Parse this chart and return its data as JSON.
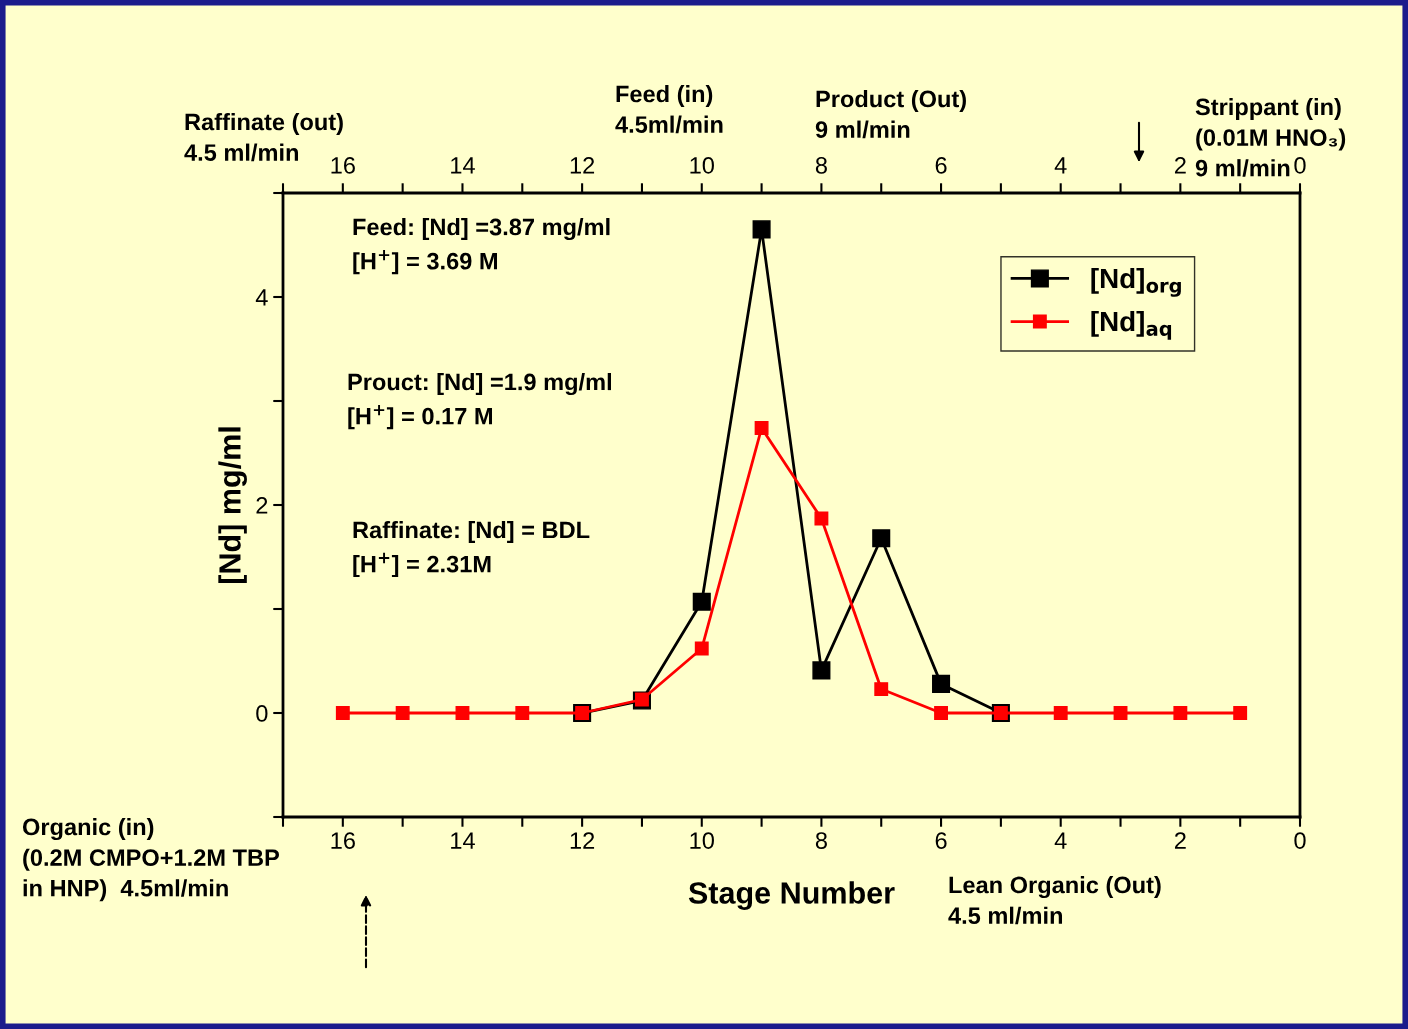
{
  "chart_data": {
    "type": "line",
    "xlabel": "Stage Number",
    "ylabel": "[Nd] mg/ml",
    "xlim": [
      17,
      0
    ],
    "ylim": [
      -1,
      5
    ],
    "xticks": [
      {
        "value": 17,
        "label": null
      },
      16,
      {
        "value": 15,
        "label": null
      },
      14,
      {
        "value": 13,
        "label": null
      },
      12,
      {
        "value": 11,
        "label": null
      },
      10,
      {
        "value": 9,
        "label": null
      },
      8,
      {
        "value": 7,
        "label": null
      },
      6,
      {
        "value": 5,
        "label": null
      },
      4,
      {
        "value": 3,
        "label": null
      },
      2,
      {
        "value": 1,
        "label": null
      },
      0
    ],
    "x2lim": [
      17,
      0
    ],
    "x2ticks": [
      {
        "value": 17,
        "label": null
      },
      16,
      {
        "value": 15,
        "label": null
      },
      14,
      {
        "value": 13,
        "label": null
      },
      12,
      {
        "value": 11,
        "label": null
      },
      10,
      {
        "value": 9,
        "label": null
      },
      8,
      {
        "value": 7,
        "label": null
      },
      6,
      {
        "value": 5,
        "label": null
      },
      4,
      {
        "value": 3,
        "label": null
      },
      2,
      {
        "value": 1,
        "label": null
      },
      0
    ],
    "yticks": [
      {
        "value": -1,
        "label": null
      },
      0,
      {
        "value": 1,
        "label": null
      },
      2,
      {
        "value": 3,
        "label": null
      },
      4,
      {
        "value": 5,
        "label": null
      }
    ],
    "marker": "square",
    "line_style": "solid",
    "grid": false,
    "legend": "top right",
    "series": [
      {
        "name": "[Nd]$_{org}$",
        "color": "#000000",
        "x": [
          12,
          11,
          10,
          9,
          8,
          7,
          6,
          5
        ],
        "values": [
          0,
          0.12,
          1.07,
          4.65,
          0.41,
          1.68,
          0.28,
          0
        ]
      },
      {
        "name": "[Nd]$_{aq}$",
        "color": "#ff0000",
        "x": [
          16,
          15,
          14,
          13,
          12,
          11,
          10,
          9,
          8,
          7,
          6,
          5,
          4,
          3,
          2,
          1
        ],
        "values": [
          0,
          0,
          0,
          0,
          0,
          0.13,
          0.62,
          2.74,
          1.87,
          0.23,
          0,
          0,
          0,
          0,
          0,
          0
        ]
      }
    ],
    "annotations": [
      "Feed: [Nd] =3.87 mg/ml\n[H$^{+}$] = 3.69 M",
      "Prouct: [Nd] =1.9 mg/ml\n[H$^{+}$] = 0.17 M",
      "Raffinate: [Nd] = BDL\n[H$^{+}$] = 2.31M",
      "Raffinate (out)\n4.5 ml/min",
      "Feed (in)\n4.5ml/min",
      "Product (Out)\n9 ml/min",
      "Strippant (in)\n(0.01M HNO₃)\n9 ml/min",
      "Organic (in)\n(0.2M CMPO+1.2M TBP\nin HNP)  4.5ml/min",
      "Lean Organic (Out)\n4.5 ml/min"
    ]
  }
}
